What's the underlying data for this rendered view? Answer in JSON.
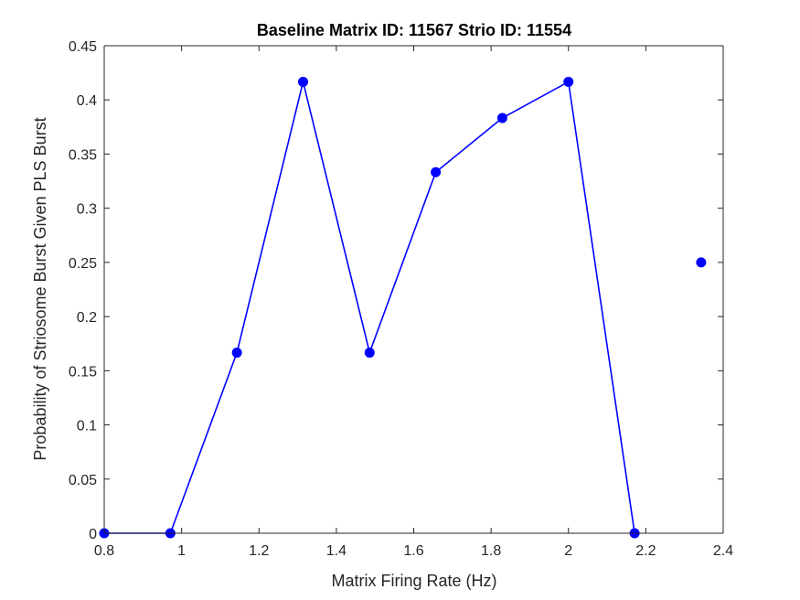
{
  "chart_data": {
    "type": "line",
    "title": "Baseline Matrix ID: 11567 Strio ID: 11554",
    "xlabel": "Matrix Firing Rate (Hz)",
    "ylabel": "Probability of Striosome Burst Given PLS Burst",
    "xlim": [
      0.8,
      2.4
    ],
    "ylim": [
      0,
      0.45
    ],
    "xticks": [
      "0.8",
      "1",
      "1.2",
      "1.4",
      "1.6",
      "1.8",
      "2",
      "2.2",
      "2.4"
    ],
    "yticks": [
      "0",
      "0.05",
      "0.1",
      "0.15",
      "0.2",
      "0.25",
      "0.3",
      "0.35",
      "0.4",
      "0.45"
    ],
    "grid": false,
    "series": [
      {
        "color": "#0000ff",
        "marker": "circle",
        "segments": [
          [
            {
              "x": 0.8,
              "y": 0
            },
            {
              "x": 0.971,
              "y": 0
            },
            {
              "x": 1.143,
              "y": 0.1667
            },
            {
              "x": 1.314,
              "y": 0.4167
            },
            {
              "x": 1.486,
              "y": 0.1667
            },
            {
              "x": 1.657,
              "y": 0.3333
            },
            {
              "x": 1.829,
              "y": 0.3833
            },
            {
              "x": 2.0,
              "y": 0.4167
            },
            {
              "x": 2.171,
              "y": 0
            }
          ],
          [
            {
              "x": 2.343,
              "y": 0.25
            }
          ]
        ]
      }
    ]
  }
}
